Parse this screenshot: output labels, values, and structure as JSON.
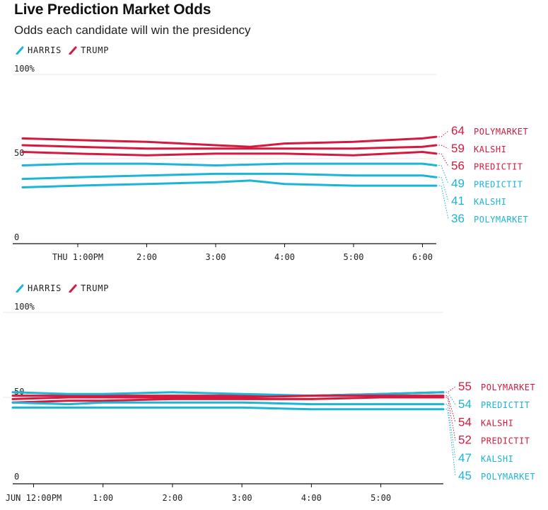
{
  "title": "Live Prediction Market Odds",
  "subtitle": "Odds each candidate will win the presidency",
  "colors": {
    "harris": "#1bb5d6",
    "trump": "#d6193f",
    "grid": "#e8e8e8",
    "axis": "#111111",
    "connector": "#888888"
  },
  "chart_data": [
    {
      "type": "line",
      "legend": [
        {
          "label": "HARRIS",
          "key": "harris"
        },
        {
          "label": "TRUMP",
          "key": "trump"
        }
      ],
      "y_ticks": [
        "100%",
        "50",
        "0"
      ],
      "ylim": [
        0,
        100
      ],
      "x_ticks": [
        {
          "label": "THU 1:00PM",
          "x": 1
        },
        {
          "label": "2:00",
          "x": 2
        },
        {
          "label": "3:00",
          "x": 3
        },
        {
          "label": "4:00",
          "x": 4
        },
        {
          "label": "5:00",
          "x": 5
        },
        {
          "label": "6:00",
          "x": 6
        }
      ],
      "xlim": [
        0.2,
        6.2
      ],
      "series": [
        {
          "candidate": "trump",
          "market": "POLYMARKET",
          "label_value": "64",
          "x": [
            0.2,
            1.0,
            2.0,
            3.0,
            3.5,
            4.0,
            5.0,
            6.0,
            6.2
          ],
          "y": [
            62,
            61,
            60,
            58,
            57,
            59,
            60,
            62,
            63
          ]
        },
        {
          "candidate": "trump",
          "market": "KALSHI",
          "label_value": "59",
          "x": [
            0.2,
            1.0,
            2.0,
            3.0,
            4.0,
            5.0,
            6.0,
            6.2
          ],
          "y": [
            58,
            57,
            56,
            56,
            56,
            56,
            57,
            58
          ]
        },
        {
          "candidate": "trump",
          "market": "PREDICTIT",
          "label_value": "56",
          "x": [
            0.2,
            1.0,
            2.0,
            3.0,
            4.0,
            5.0,
            6.0,
            6.2
          ],
          "y": [
            54,
            53,
            52,
            53,
            53,
            52,
            54,
            53
          ]
        },
        {
          "candidate": "harris",
          "market": "PREDICTIT",
          "label_value": "49",
          "x": [
            0.2,
            1.0,
            2.0,
            3.0,
            4.0,
            5.0,
            6.0,
            6.2
          ],
          "y": [
            46,
            47,
            47,
            46,
            47,
            47,
            47,
            46
          ]
        },
        {
          "candidate": "harris",
          "market": "KALSHI",
          "label_value": "41",
          "x": [
            0.2,
            1.0,
            2.0,
            3.0,
            4.0,
            5.0,
            6.0,
            6.2
          ],
          "y": [
            38,
            39,
            40,
            41,
            41,
            40,
            40,
            39
          ]
        },
        {
          "candidate": "harris",
          "market": "POLYMARKET",
          "label_value": "36",
          "x": [
            0.2,
            1.0,
            2.0,
            3.0,
            3.5,
            4.0,
            5.0,
            6.0,
            6.2
          ],
          "y": [
            33,
            34,
            35,
            36,
            37,
            35,
            34,
            34,
            34
          ]
        }
      ]
    },
    {
      "type": "line",
      "legend": [
        {
          "label": "HARRIS",
          "key": "harris"
        },
        {
          "label": "TRUMP",
          "key": "trump"
        }
      ],
      "y_ticks": [
        "100%",
        "50",
        "0"
      ],
      "ylim": [
        0,
        100
      ],
      "x_ticks": [
        {
          "label": "JUN 12:00PM",
          "x": 0
        },
        {
          "label": "1:00",
          "x": 1
        },
        {
          "label": "2:00",
          "x": 2
        },
        {
          "label": "3:00",
          "x": 3
        },
        {
          "label": "4:00",
          "x": 4
        },
        {
          "label": "5:00",
          "x": 5
        }
      ],
      "xlim": [
        -0.3,
        5.9
      ],
      "series": [
        {
          "candidate": "trump",
          "market": "POLYMARKET",
          "label_value": "55",
          "x": [
            -0.3,
            0.5,
            1.0,
            2.0,
            3.0,
            4.0,
            5.0,
            5.9
          ],
          "y": [
            51,
            51,
            51,
            51,
            51,
            51,
            52,
            53
          ]
        },
        {
          "candidate": "harris",
          "market": "PREDICTIT",
          "label_value": "54",
          "x": [
            -0.3,
            0.5,
            1.0,
            2.0,
            3.0,
            4.0,
            5.0,
            5.9
          ],
          "y": [
            53,
            52,
            52,
            53,
            52,
            51,
            52,
            53
          ]
        },
        {
          "candidate": "trump",
          "market": "KALSHI",
          "label_value": "54",
          "x": [
            -0.3,
            0.5,
            1.0,
            2.0,
            3.0,
            4.0,
            5.0,
            5.9
          ],
          "y": [
            49,
            50,
            50,
            50,
            50,
            51,
            51,
            51
          ]
        },
        {
          "candidate": "trump",
          "market": "PREDICTIT",
          "label_value": "52",
          "x": [
            -0.3,
            0.5,
            1.0,
            2.0,
            3.0,
            4.0,
            5.0,
            5.9
          ],
          "y": [
            47,
            48,
            48,
            49,
            49,
            49,
            50,
            50
          ]
        },
        {
          "candidate": "harris",
          "market": "KALSHI",
          "label_value": "47",
          "x": [
            -0.3,
            0.5,
            1.0,
            2.0,
            3.0,
            4.0,
            5.0,
            5.9
          ],
          "y": [
            47,
            46,
            47,
            47,
            47,
            46,
            46,
            46
          ]
        },
        {
          "candidate": "harris",
          "market": "POLYMARKET",
          "label_value": "45",
          "x": [
            -0.3,
            0.5,
            1.0,
            2.0,
            3.0,
            4.0,
            5.0,
            5.9
          ],
          "y": [
            44,
            44,
            44,
            44,
            44,
            43,
            43,
            43
          ]
        }
      ]
    }
  ]
}
